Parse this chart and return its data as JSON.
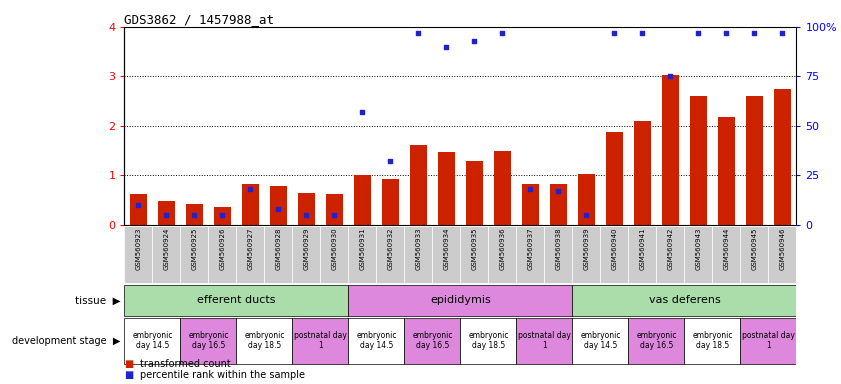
{
  "title": "GDS3862 / 1457988_at",
  "samples": [
    "GSM560923",
    "GSM560924",
    "GSM560925",
    "GSM560926",
    "GSM560927",
    "GSM560928",
    "GSM560929",
    "GSM560930",
    "GSM560931",
    "GSM560932",
    "GSM560933",
    "GSM560934",
    "GSM560935",
    "GSM560936",
    "GSM560937",
    "GSM560938",
    "GSM560939",
    "GSM560940",
    "GSM560941",
    "GSM560942",
    "GSM560943",
    "GSM560944",
    "GSM560945",
    "GSM560946"
  ],
  "transformed_count": [
    0.62,
    0.47,
    0.42,
    0.35,
    0.83,
    0.78,
    0.65,
    0.62,
    1.0,
    0.93,
    1.62,
    1.47,
    1.28,
    1.48,
    0.83,
    0.82,
    1.02,
    1.88,
    2.1,
    3.02,
    2.6,
    2.18,
    2.6,
    2.75
  ],
  "percentile_rank_pct": [
    10,
    5,
    5,
    5,
    18,
    8,
    5,
    5,
    57,
    32,
    97,
    90,
    93,
    97,
    18,
    17,
    5,
    97,
    97,
    75,
    97,
    97,
    97,
    97
  ],
  "tissue_groups": [
    {
      "label": "efferent ducts",
      "start": 0,
      "end": 7,
      "color": "#aaddaa"
    },
    {
      "label": "epididymis",
      "start": 8,
      "end": 15,
      "color": "#dd88dd"
    },
    {
      "label": "vas deferens",
      "start": 16,
      "end": 23,
      "color": "#aaddaa"
    }
  ],
  "dev_stage_groups": [
    {
      "label": "embryonic\nday 14.5",
      "start": 0,
      "end": 1,
      "color": "#ffffff"
    },
    {
      "label": "embryonic\nday 16.5",
      "start": 2,
      "end": 3,
      "color": "#dd88dd"
    },
    {
      "label": "embryonic\nday 18.5",
      "start": 4,
      "end": 5,
      "color": "#ffffff"
    },
    {
      "label": "postnatal day\n1",
      "start": 6,
      "end": 7,
      "color": "#dd88dd"
    },
    {
      "label": "embryonic\nday 14.5",
      "start": 8,
      "end": 9,
      "color": "#ffffff"
    },
    {
      "label": "embryonic\nday 16.5",
      "start": 10,
      "end": 11,
      "color": "#dd88dd"
    },
    {
      "label": "embryonic\nday 18.5",
      "start": 12,
      "end": 13,
      "color": "#ffffff"
    },
    {
      "label": "postnatal day\n1",
      "start": 14,
      "end": 15,
      "color": "#dd88dd"
    },
    {
      "label": "embryonic\nday 14.5",
      "start": 16,
      "end": 17,
      "color": "#ffffff"
    },
    {
      "label": "embryonic\nday 16.5",
      "start": 18,
      "end": 19,
      "color": "#dd88dd"
    },
    {
      "label": "embryonic\nday 18.5",
      "start": 20,
      "end": 21,
      "color": "#ffffff"
    },
    {
      "label": "postnatal day\n1",
      "start": 22,
      "end": 23,
      "color": "#dd88dd"
    }
  ],
  "bar_color": "#CC2200",
  "dot_color": "#2222CC",
  "ylim_left": [
    0,
    4
  ],
  "ylim_right": [
    0,
    100
  ],
  "yticks_left": [
    0,
    1,
    2,
    3,
    4
  ],
  "yticks_right": [
    0,
    25,
    50,
    75,
    100
  ],
  "background_color": "#ffffff",
  "label_bg_color": "#cccccc"
}
